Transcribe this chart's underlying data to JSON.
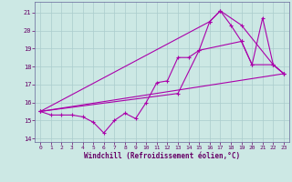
{
  "bg_color": "#cce8e4",
  "grid_color": "#aacccc",
  "line_color": "#aa00aa",
  "xlabel": "Windchill (Refroidissement éolien,°C)",
  "xlim": [
    -0.5,
    23.5
  ],
  "ylim": [
    13.8,
    21.6
  ],
  "yticks": [
    14,
    15,
    16,
    17,
    18,
    19,
    20,
    21
  ],
  "xticks": [
    0,
    1,
    2,
    3,
    4,
    5,
    6,
    7,
    8,
    9,
    10,
    11,
    12,
    13,
    14,
    15,
    16,
    17,
    18,
    19,
    20,
    21,
    22,
    23
  ],
  "line1_x": [
    0,
    1,
    2,
    3,
    4,
    5,
    6,
    7,
    8,
    9,
    10,
    11,
    12,
    13,
    14,
    15,
    16,
    17,
    18,
    19,
    20,
    21,
    22,
    23
  ],
  "line1_y": [
    15.5,
    15.3,
    15.3,
    15.3,
    15.2,
    14.9,
    14.3,
    15.0,
    15.4,
    15.1,
    16.0,
    17.1,
    17.2,
    18.5,
    18.5,
    18.9,
    20.5,
    21.1,
    20.3,
    19.4,
    18.1,
    20.7,
    18.1,
    17.6
  ],
  "line2_x": [
    0,
    23
  ],
  "line2_y": [
    15.5,
    17.6
  ],
  "line3_x": [
    0,
    16,
    17,
    19,
    22,
    23
  ],
  "line3_y": [
    15.5,
    20.5,
    21.1,
    20.3,
    18.1,
    17.6
  ],
  "line4_x": [
    0,
    13,
    15,
    19,
    20,
    22,
    23
  ],
  "line4_y": [
    15.5,
    16.5,
    18.9,
    19.4,
    18.1,
    18.1,
    17.6
  ]
}
